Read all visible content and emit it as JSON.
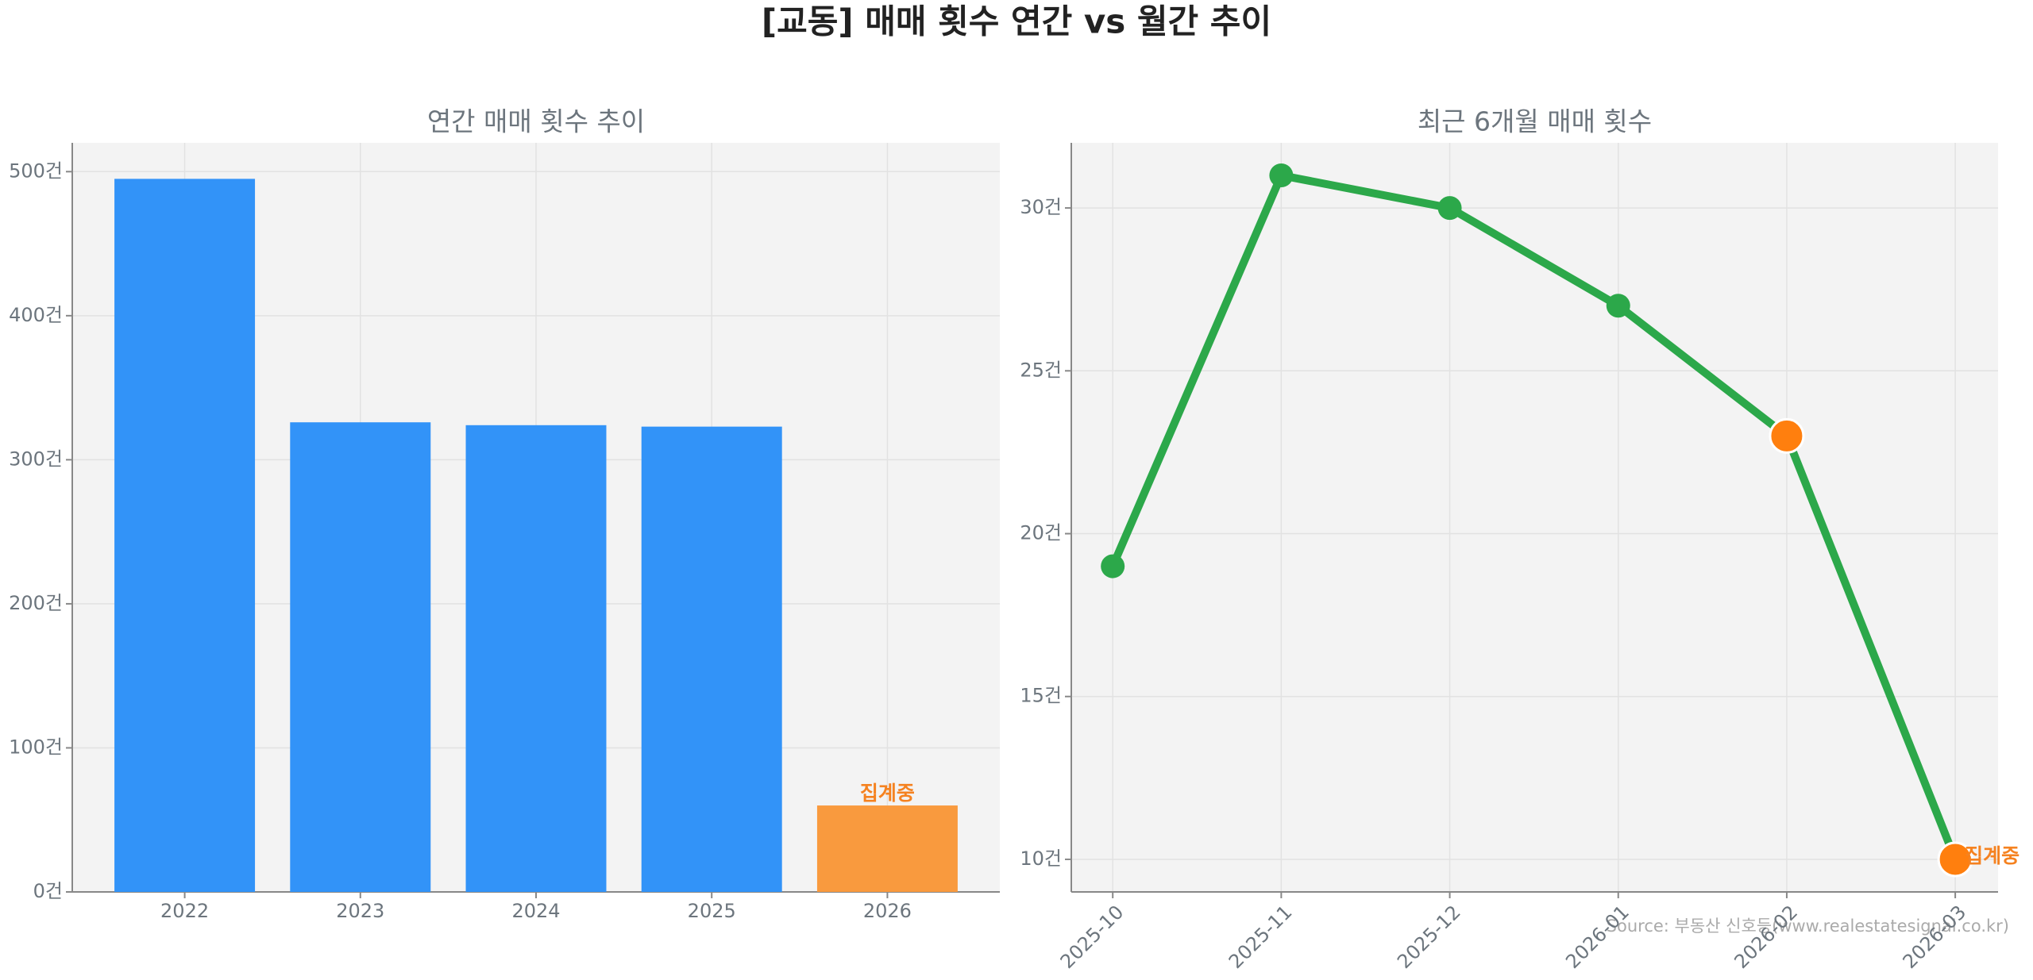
{
  "title": "[교동] 매매 횟수 연간 vs 월간 추이",
  "source": "Source: 부동산 신호등(www.realestatesignal.co.kr)",
  "chart_data": [
    {
      "type": "bar",
      "title": "연간 매매 횟수 추이",
      "categories": [
        "2022",
        "2023",
        "2024",
        "2025",
        "2026"
      ],
      "values": [
        495,
        326,
        324,
        323,
        60
      ],
      "colors": [
        "#3293f8",
        "#3293f8",
        "#3293f8",
        "#3293f8",
        "#f99a3e"
      ],
      "ylim": [
        0,
        520
      ],
      "yticks": [
        {
          "value": 0,
          "label": "0건"
        },
        {
          "value": 100,
          "label": "100건"
        },
        {
          "value": 200,
          "label": "200건"
        },
        {
          "value": 300,
          "label": "300건"
        },
        {
          "value": 400,
          "label": "400건"
        },
        {
          "value": 500,
          "label": "500건"
        }
      ],
      "grid": true,
      "annotation": {
        "text": "집계중",
        "category": "2026",
        "color": "#f58220"
      }
    },
    {
      "type": "line",
      "title": "최근 6개월 매매 횟수",
      "categories": [
        "2025-10",
        "2025-11",
        "2025-12",
        "2026-01",
        "2026-02",
        "2026-03"
      ],
      "values": [
        19,
        31,
        30,
        27,
        23,
        10
      ],
      "color": "#2ca84a",
      "marker_colors": [
        "#2ca84a",
        "#2ca84a",
        "#2ca84a",
        "#2ca84a",
        "#ff7f0e",
        "#ff7f0e"
      ],
      "ylim": [
        9,
        32
      ],
      "yticks": [
        {
          "value": 10,
          "label": "10건"
        },
        {
          "value": 15,
          "label": "15건"
        },
        {
          "value": 20,
          "label": "20건"
        },
        {
          "value": 25,
          "label": "25건"
        },
        {
          "value": 30,
          "label": "30건"
        }
      ],
      "grid": true,
      "annotation": {
        "text": "집계중",
        "category": "2026-03",
        "color": "#f58220"
      }
    }
  ]
}
